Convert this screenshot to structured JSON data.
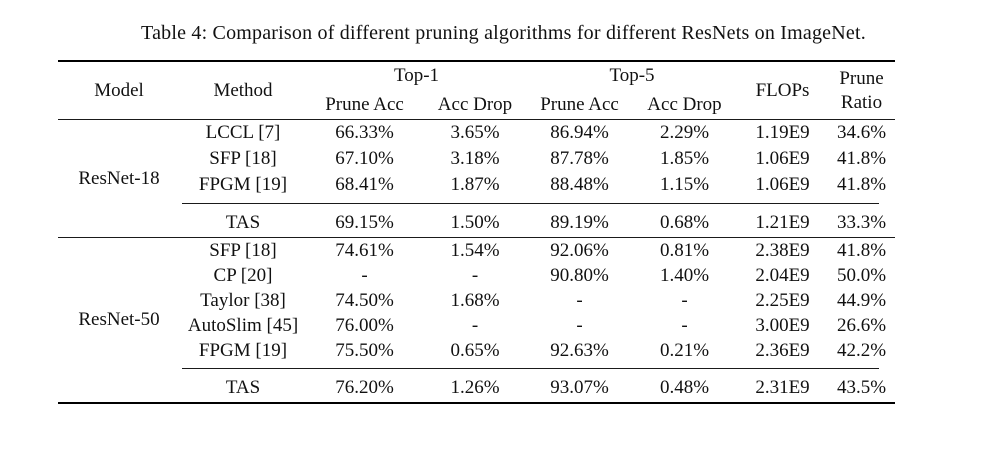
{
  "caption": "Table 4: Comparison of different pruning algorithms for different ResNets on ImageNet.",
  "table": {
    "header": {
      "model": "Model",
      "method": "Method",
      "top1": "Top-1",
      "top5": "Top-5",
      "prune_acc": "Prune Acc",
      "acc_drop": "Acc Drop",
      "flops": "FLOPs",
      "prune": "Prune",
      "ratio": "Ratio"
    },
    "sections": [
      {
        "model": "ResNet-18",
        "rows": [
          {
            "method": "LCCL [7]",
            "t1p": "66.33%",
            "t1d": "3.65%",
            "t5p": "86.94%",
            "t5d": "2.29%",
            "flops": "1.19E9",
            "ratio": "34.6%"
          },
          {
            "method": "SFP [18]",
            "t1p": "67.10%",
            "t1d": "3.18%",
            "t5p": "87.78%",
            "t5d": "1.85%",
            "flops": "1.06E9",
            "ratio": "41.8%"
          },
          {
            "method": "FPGM [19]",
            "t1p": "68.41%",
            "t1d": "1.87%",
            "t5p": "88.48%",
            "t5d": "1.15%",
            "flops": "1.06E9",
            "ratio": "41.8%"
          }
        ],
        "tas": {
          "method": "TAS",
          "t1p": "69.15%",
          "t1d": "1.50%",
          "t5p": "89.19%",
          "t5d": "0.68%",
          "flops": "1.21E9",
          "ratio": "33.3%"
        }
      },
      {
        "model": "ResNet-50",
        "rows": [
          {
            "method": "SFP [18]",
            "t1p": "74.61%",
            "t1d": "1.54%",
            "t5p": "92.06%",
            "t5d": "0.81%",
            "flops": "2.38E9",
            "ratio": "41.8%"
          },
          {
            "method": "CP [20]",
            "t1p": "-",
            "t1d": "-",
            "t5p": "90.80%",
            "t5d": "1.40%",
            "flops": "2.04E9",
            "ratio": "50.0%"
          },
          {
            "method": "Taylor [38]",
            "t1p": "74.50%",
            "t1d": "1.68%",
            "t5p": "-",
            "t5d": "-",
            "flops": "2.25E9",
            "ratio": "44.9%"
          },
          {
            "method": "AutoSlim [45]",
            "t1p": "76.00%",
            "t1d": "-",
            "t5p": "-",
            "t5d": "-",
            "flops": "3.00E9",
            "ratio": "26.6%"
          },
          {
            "method": "FPGM [19]",
            "t1p": "75.50%",
            "t1d": "0.65%",
            "t5p": "92.63%",
            "t5d": "0.21%",
            "flops": "2.36E9",
            "ratio": "42.2%"
          }
        ],
        "tas": {
          "method": "TAS",
          "t1p": "76.20%",
          "t1d": "1.26%",
          "t5p": "93.07%",
          "t5d": "0.48%",
          "flops": "2.31E9",
          "ratio": "43.5%"
        }
      }
    ]
  }
}
